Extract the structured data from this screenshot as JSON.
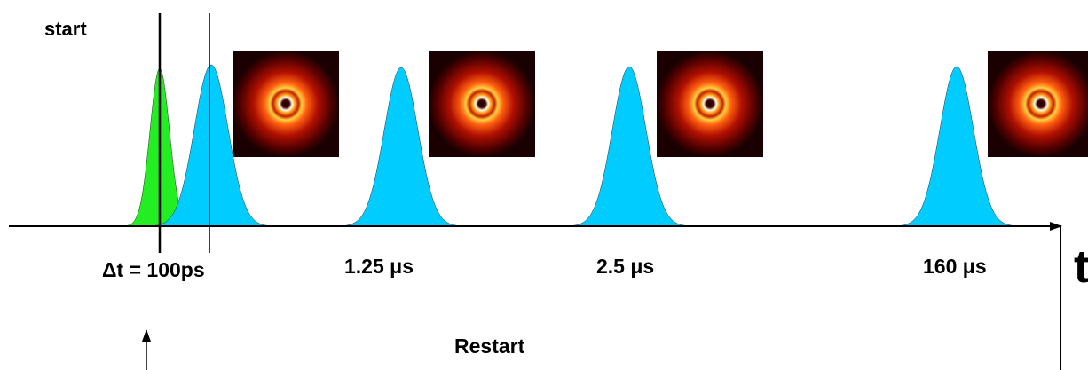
{
  "labels": {
    "start": "start",
    "delay": "Δt = 100ps",
    "t1": "1.25 μs",
    "t2": "2.5 μs",
    "t3": "160 μs",
    "axis": "t",
    "restart": "Restart"
  }
}
